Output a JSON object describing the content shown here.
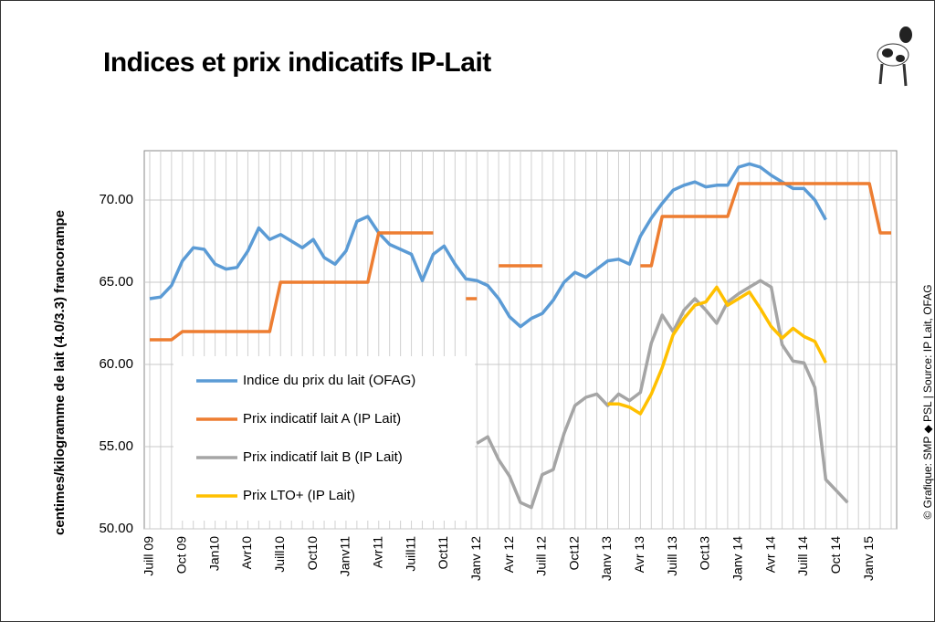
{
  "chart_data": {
    "type": "line",
    "title": "Indices et prix indicatifs IP-Lait",
    "y_label": "centimes/kilogramme de lait (4.0/3.3) francorampe",
    "source": "© Grafique: SMP ◆ PSL | Source: IP Lait, OFAG",
    "categories": [
      "Juill 09",
      null,
      null,
      "Oct 09",
      null,
      null,
      "Jan10",
      null,
      null,
      "Avr10",
      null,
      null,
      "Juill10",
      null,
      null,
      "Oct10",
      null,
      null,
      "Janv11",
      null,
      null,
      "Avr11",
      null,
      null,
      "Juill11",
      null,
      null,
      "Oct11",
      null,
      null,
      "Janv 12",
      null,
      null,
      "Avr 12",
      null,
      null,
      "Juill 12",
      null,
      null,
      "Oct12",
      null,
      null,
      "Janv 13",
      null,
      null,
      "Avr 13",
      null,
      null,
      "Juill 13",
      null,
      null,
      "Oct13",
      null,
      null,
      "Janv 14",
      null,
      null,
      "Avr 14",
      null,
      null,
      "Juill 14",
      null,
      null,
      "Oct 14",
      null,
      null,
      "Janv 15",
      null,
      null
    ],
    "series": [
      {
        "name": "Indice du prix du lait (OFAG)",
        "color": "#5b9bd5",
        "values": [
          64.0,
          64.1,
          64.8,
          66.3,
          67.1,
          67.0,
          66.1,
          65.8,
          65.9,
          66.9,
          68.3,
          67.6,
          67.9,
          67.5,
          67.1,
          67.6,
          66.5,
          66.1,
          66.9,
          68.7,
          69.0,
          68.0,
          67.3,
          67.0,
          66.7,
          65.1,
          66.7,
          67.2,
          66.1,
          65.2,
          65.1,
          64.8,
          64.0,
          62.9,
          62.3,
          62.8,
          63.1,
          63.9,
          65.0,
          65.6,
          65.3,
          65.8,
          66.3,
          66.4,
          66.1,
          67.8,
          68.9,
          69.8,
          70.6,
          70.9,
          71.1,
          70.8,
          70.9,
          70.9,
          72.0,
          72.2,
          72.0,
          71.5,
          71.1,
          70.7,
          70.7,
          70.0,
          68.8,
          null,
          null,
          null,
          null,
          null,
          null
        ]
      },
      {
        "name": "Prix indicatif lait A (IP Lait)",
        "color": "#ed7d31",
        "values": [
          61.5,
          61.5,
          61.5,
          62,
          62,
          62,
          62,
          62,
          62,
          62,
          62,
          62,
          65,
          65,
          65,
          65,
          65,
          65,
          65,
          65,
          65,
          68,
          68,
          68,
          68,
          68,
          68,
          null,
          null,
          64,
          64,
          null,
          66,
          66,
          66,
          66,
          66,
          null,
          null,
          null,
          null,
          null,
          null,
          null,
          null,
          66,
          66,
          69,
          69,
          69,
          69,
          69,
          69,
          69,
          71,
          71,
          71,
          71,
          71,
          71,
          71,
          71,
          71,
          71,
          71,
          71,
          71,
          68,
          68
        ]
      },
      {
        "name": "Prix indicatif lait B (IP Lait)",
        "color": "#a5a5a5",
        "values": [
          null,
          null,
          null,
          null,
          null,
          null,
          null,
          null,
          null,
          null,
          null,
          null,
          null,
          null,
          null,
          null,
          null,
          null,
          null,
          null,
          null,
          null,
          null,
          null,
          null,
          null,
          null,
          null,
          null,
          null,
          55.2,
          55.6,
          54.2,
          53.2,
          51.6,
          51.3,
          53.3,
          53.6,
          55.8,
          57.5,
          58.0,
          58.2,
          57.5,
          58.2,
          57.8,
          58.3,
          61.3,
          63.0,
          62.0,
          63.3,
          64.0,
          63.3,
          62.5,
          63.8,
          64.3,
          64.7,
          65.1,
          64.7,
          61.2,
          60.2,
          60.1,
          58.6,
          53.0,
          52.3,
          51.6,
          null,
          null,
          null,
          null
        ]
      },
      {
        "name": "Prix LTO+ (IP Lait)",
        "color": "#ffc000",
        "values": [
          null,
          null,
          null,
          null,
          null,
          null,
          null,
          null,
          null,
          null,
          null,
          null,
          null,
          null,
          null,
          null,
          null,
          null,
          null,
          null,
          null,
          null,
          null,
          null,
          null,
          null,
          null,
          null,
          null,
          null,
          null,
          null,
          null,
          null,
          null,
          null,
          null,
          null,
          null,
          null,
          null,
          null,
          57.6,
          57.6,
          57.4,
          57.0,
          58.2,
          59.8,
          61.8,
          62.8,
          63.6,
          63.8,
          64.7,
          63.6,
          64.0,
          64.4,
          63.4,
          62.3,
          61.6,
          62.2,
          61.7,
          61.4,
          60.1,
          null,
          null,
          null,
          null,
          null,
          null
        ]
      }
    ],
    "ylim": [
      50,
      73
    ],
    "yticks": [
      {
        "value": 50,
        "label": "50.00"
      },
      {
        "value": 55,
        "label": "55.00"
      },
      {
        "value": 60,
        "label": "60.00"
      },
      {
        "value": 65,
        "label": "65.00"
      },
      {
        "value": 70,
        "label": "70.00"
      }
    ],
    "grid": true,
    "legend": "lower left"
  }
}
